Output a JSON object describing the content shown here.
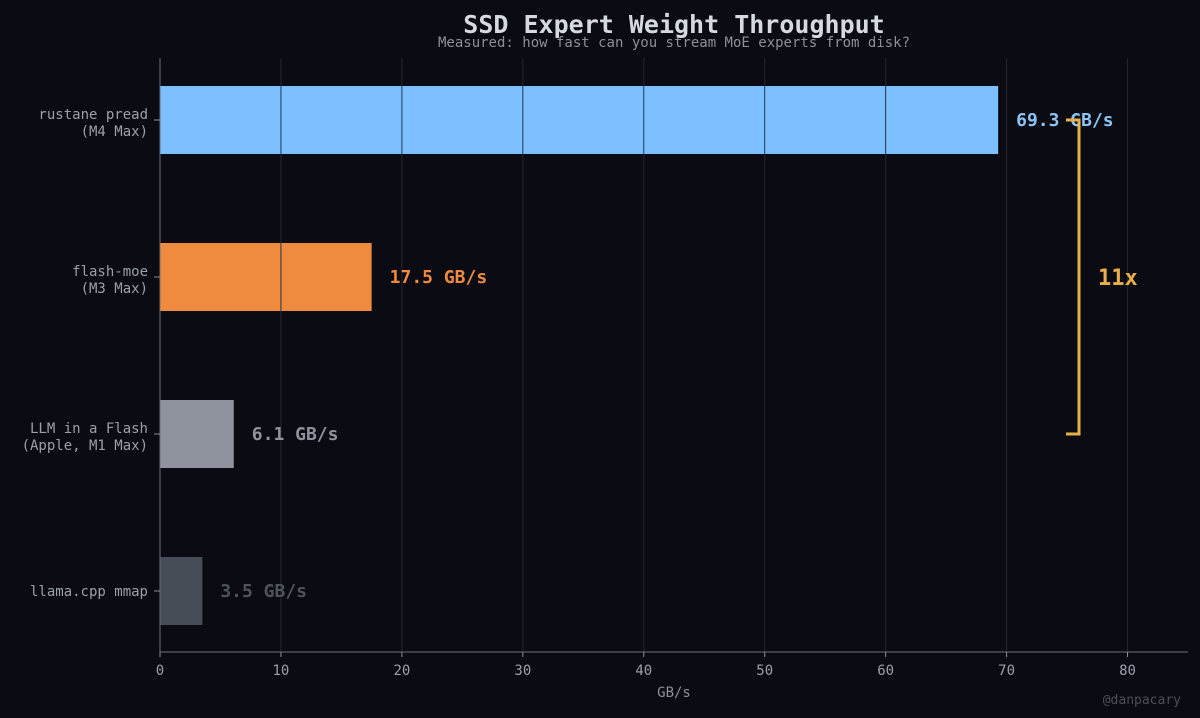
{
  "chart_data": {
    "type": "bar",
    "orientation": "horizontal",
    "title": "SSD Expert Weight Throughput",
    "subtitle": "Measured: how fast can you stream MoE experts from disk?",
    "xlabel": "GB/s",
    "ylabel": "",
    "xlim": [
      0,
      85
    ],
    "xticks": [
      0,
      10,
      20,
      30,
      40,
      50,
      60,
      70,
      80
    ],
    "grid": true,
    "bars": [
      {
        "label_line1": "rustane pread",
        "label_line2": "(M4 Max)",
        "value": 69.3,
        "value_label": "69.3 GB/s",
        "color": "#7dc0ff",
        "label_color": "#8cc4f5"
      },
      {
        "label_line1": "flash-moe",
        "label_line2": "(M3 Max)",
        "value": 17.5,
        "value_label": "17.5 GB/s",
        "color": "#f08a3e",
        "label_color": "#f08a3e"
      },
      {
        "label_line1": "LLM in a Flash",
        "label_line2": "(Apple, M1 Max)",
        "value": 6.1,
        "value_label": "6.1 GB/s",
        "color": "#8e939d",
        "label_color": "#8e939d"
      },
      {
        "label_line1": "llama.cpp mmap",
        "label_line2": "",
        "value": 3.5,
        "value_label": "3.5 GB/s",
        "color": "#474d56",
        "label_color": "#4e545d"
      }
    ],
    "annotation": {
      "text": "11x",
      "from_bar": 0,
      "to_bar": 2,
      "color": "#e8b04a"
    },
    "credit": "@danpacary"
  }
}
